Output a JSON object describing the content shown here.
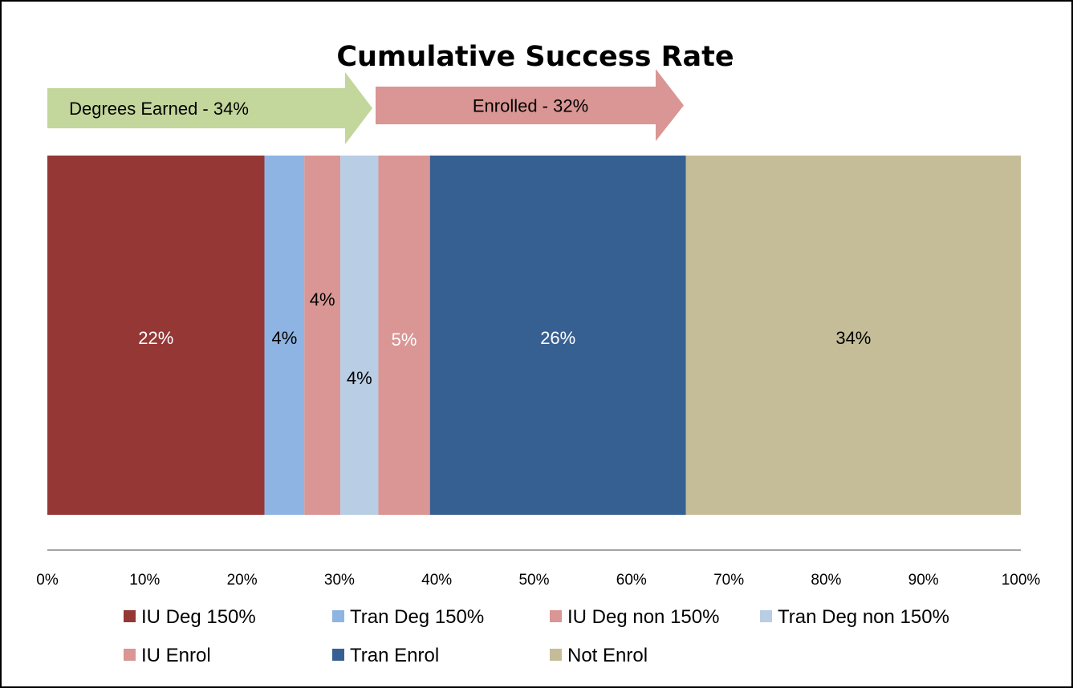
{
  "chart_data": {
    "type": "bar",
    "orientation": "horizontal-stacked-100",
    "title": "Cumulative Success Rate",
    "xlim": [
      0,
      100
    ],
    "x_ticks": [
      "0%",
      "10%",
      "20%",
      "30%",
      "40%",
      "50%",
      "60%",
      "70%",
      "80%",
      "90%",
      "100%"
    ],
    "grid": false,
    "legend_position": "bottom",
    "series": [
      {
        "name": "IU Deg 150%",
        "value": 22.3,
        "label": "22%",
        "color": "#953735",
        "label_color": "#ffffff"
      },
      {
        "name": "Tran Deg 150%",
        "value": 4.1,
        "label": "4%",
        "color": "#8eb4e3",
        "label_color": "#000000"
      },
      {
        "name": "IU Deg non 150%",
        "value": 3.7,
        "label": "4%",
        "color": "#d99694",
        "label_color": "#000000"
      },
      {
        "name": "Tran Deg non 150%",
        "value": 3.9,
        "label": "4%",
        "color": "#b9cde5",
        "label_color": "#000000"
      },
      {
        "name": "IU Enrol",
        "value": 5.3,
        "label": "5%",
        "color": "#d99694",
        "label_color": "#ffffff"
      },
      {
        "name": "Tran Enrol",
        "value": 26.3,
        "label": "26%",
        "color": "#376092",
        "label_color": "#ffffff"
      },
      {
        "name": "Not Enrol",
        "value": 34.4,
        "label": "34%",
        "color": "#c4bd97",
        "label_color": "#000000"
      }
    ],
    "annotations": [
      {
        "text": "Degrees Earned - 34%",
        "color": "#c3d69b"
      },
      {
        "text": "Enrolled - 32%",
        "color": "#d99694"
      }
    ]
  }
}
